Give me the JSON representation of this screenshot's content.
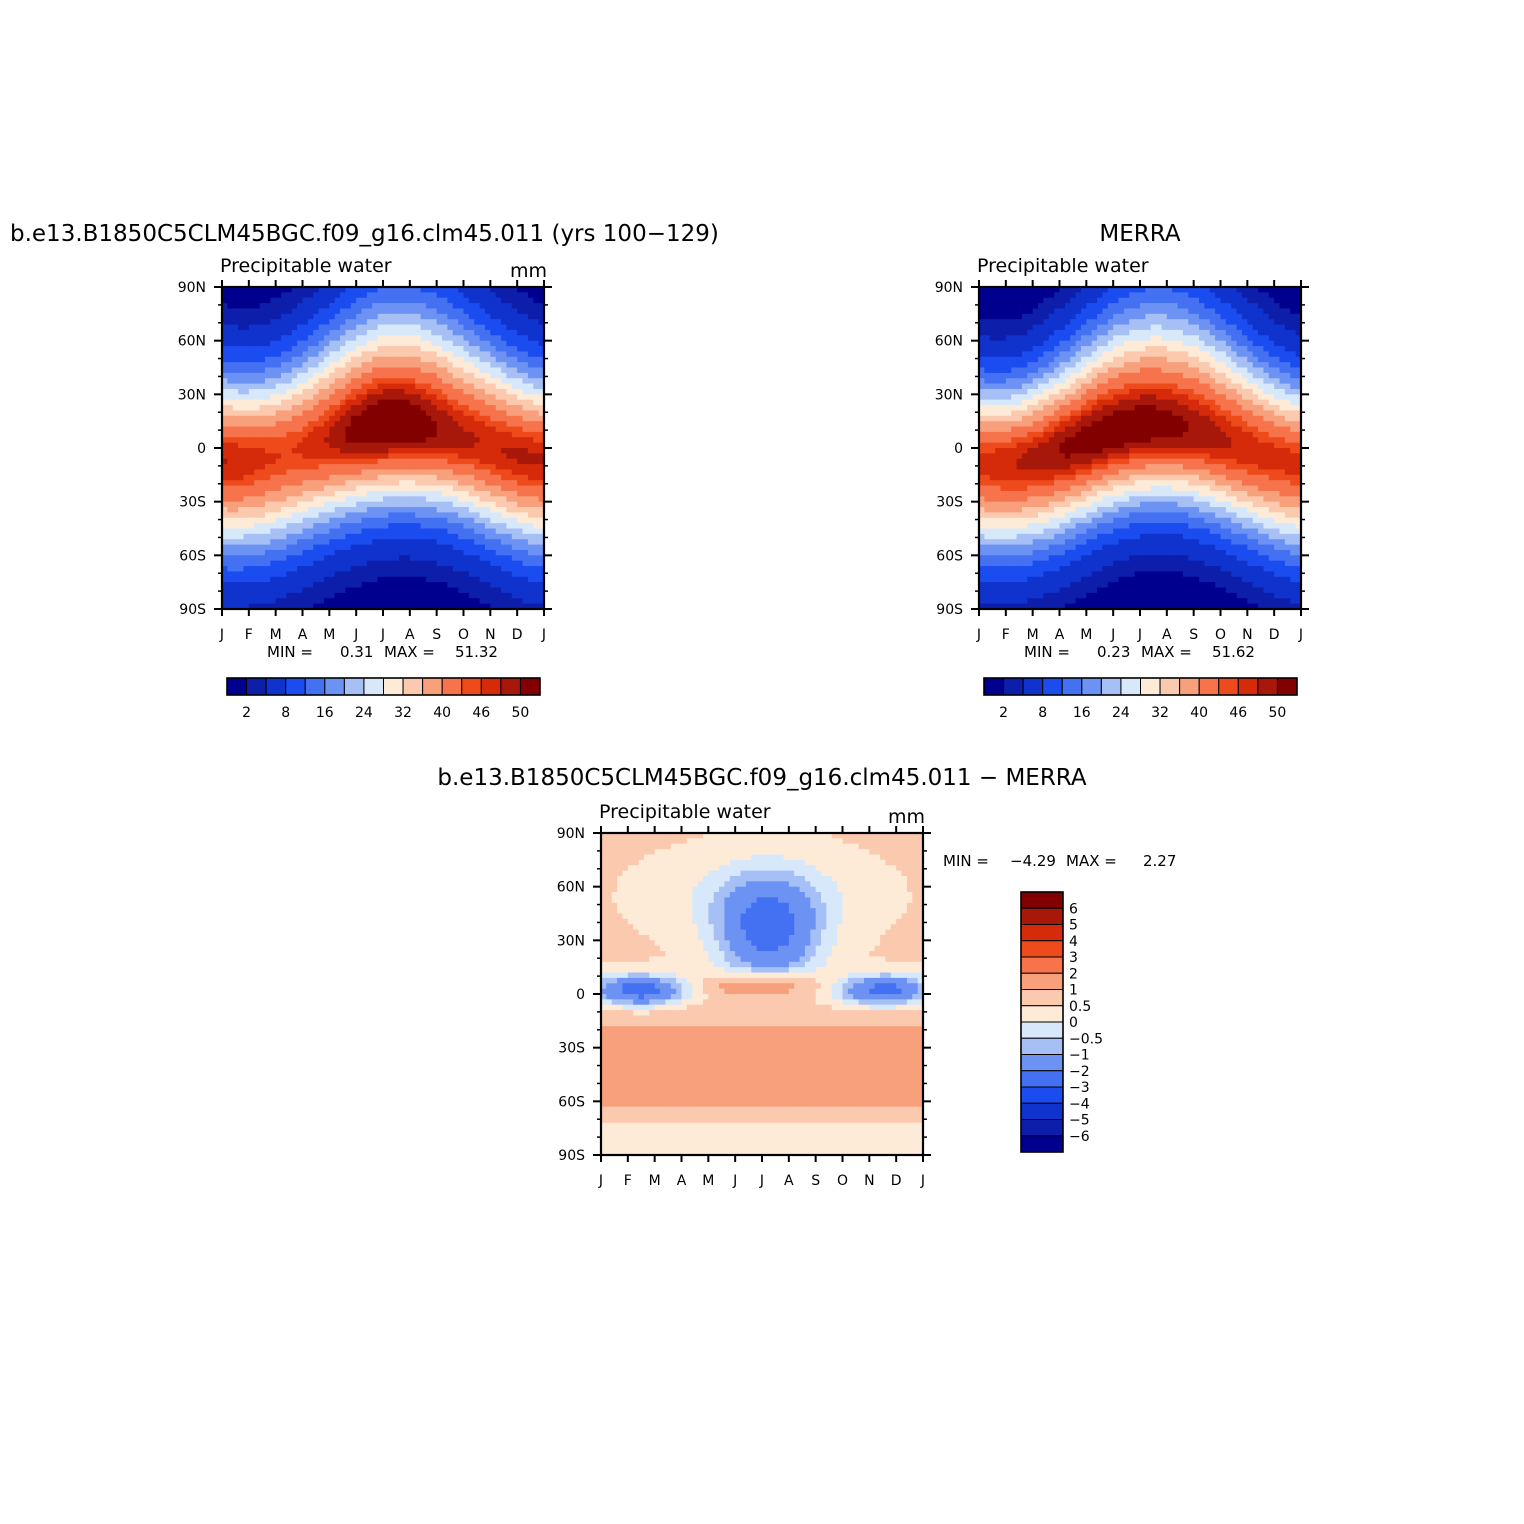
{
  "figure": {
    "colors": {
      "palette13": [
        "#00008f",
        "#0d1eaa",
        "#0f33cc",
        "#1a4cf0",
        "#4470f2",
        "#6c92f4",
        "#a6c0f6",
        "#d8e8fb",
        "#fdebd8",
        "#fbc9ae",
        "#f8a07c",
        "#f6734c",
        "#ee4b1d",
        "#d52b0a",
        "#a8180a",
        "#820000"
      ],
      "diffPalette": [
        "#00008f",
        "#0d1eaa",
        "#0f33cc",
        "#1a4cf0",
        "#4470f2",
        "#6c92f4",
        "#a6c0f6",
        "#d8e8fb",
        "#fdebd8",
        "#fbc9ae",
        "#f8a07c",
        "#f6734c",
        "#ee4b1d",
        "#d52b0a",
        "#a8180a",
        "#820000"
      ]
    }
  },
  "chart_data": [
    {
      "type": "heatmap",
      "title": "b.e13.B1850C5CLM45BGC.f09_g16.clm45.011 (yrs 100−129)",
      "subtitle": "Precipitable water",
      "units": "mm",
      "x_ticks": [
        "J",
        "F",
        "M",
        "A",
        "M",
        "J",
        "J",
        "A",
        "S",
        "O",
        "N",
        "D",
        "J"
      ],
      "y_ticks": [
        "90N",
        "60N",
        "30N",
        "0",
        "30S",
        "60S",
        "90S"
      ],
      "min_label": "MIN =",
      "min_value": "0.31",
      "max_label": "MAX =",
      "max_value": "51.32",
      "colorbar": {
        "orientation": "horizontal",
        "levels": [
          2,
          4,
          8,
          12,
          16,
          20,
          24,
          28,
          32,
          36,
          40,
          44,
          46,
          48,
          50
        ],
        "tick_labels": [
          "2",
          "8",
          "16",
          "24",
          "32",
          "40",
          "46",
          "50"
        ]
      }
    },
    {
      "type": "heatmap",
      "title": "MERRA",
      "subtitle": "Precipitable water",
      "x_ticks": [
        "J",
        "F",
        "M",
        "A",
        "M",
        "J",
        "J",
        "A",
        "S",
        "O",
        "N",
        "D",
        "J"
      ],
      "y_ticks": [
        "90N",
        "60N",
        "30N",
        "0",
        "30S",
        "60S",
        "90S"
      ],
      "min_label": "MIN =",
      "min_value": "0.23",
      "max_label": "MAX =",
      "max_value": "51.62",
      "colorbar": {
        "orientation": "horizontal",
        "levels": [
          2,
          4,
          8,
          12,
          16,
          20,
          24,
          28,
          32,
          36,
          40,
          44,
          46,
          48,
          50
        ],
        "tick_labels": [
          "2",
          "8",
          "16",
          "24",
          "32",
          "40",
          "46",
          "50"
        ]
      }
    },
    {
      "type": "heatmap",
      "title": "b.e13.B1850C5CLM45BGC.f09_g16.clm45.011 − MERRA",
      "subtitle": "Precipitable water",
      "units": "mm",
      "x_ticks": [
        "J",
        "F",
        "M",
        "A",
        "M",
        "J",
        "J",
        "A",
        "S",
        "O",
        "N",
        "D",
        "J"
      ],
      "y_ticks": [
        "90N",
        "60N",
        "30N",
        "0",
        "30S",
        "60S",
        "90S"
      ],
      "min_label": "MIN =",
      "min_value": "−4.29",
      "max_label": "MAX =",
      "max_value": "2.27",
      "colorbar": {
        "orientation": "vertical",
        "levels": [
          -6,
          -5,
          -4,
          -3,
          -2,
          -1,
          -0.5,
          0,
          0.5,
          1,
          2,
          3,
          4,
          5,
          6
        ],
        "tick_labels": [
          "6",
          "5",
          "4",
          "3",
          "2",
          "1",
          "0.5",
          "0",
          "−0.5",
          "−1",
          "−2",
          "−3",
          "−4",
          "−5",
          "−6"
        ]
      }
    }
  ]
}
